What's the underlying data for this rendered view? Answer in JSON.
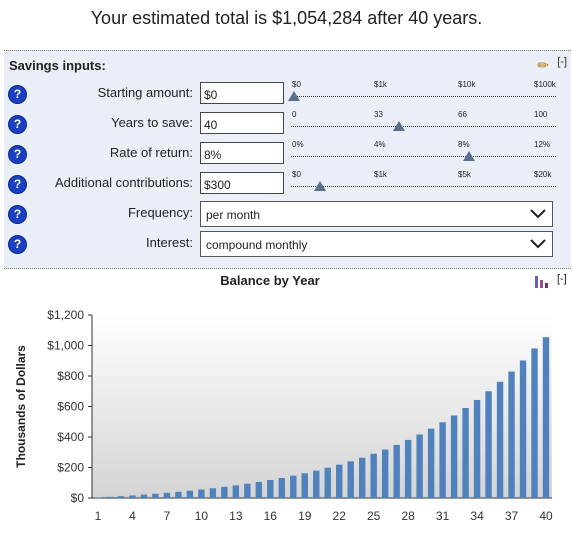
{
  "headline": "Your estimated total is $1,054,284 after 40 years.",
  "panel": {
    "title": "Savings inputs:",
    "collapse": "[-]",
    "help": "?",
    "rows": [
      {
        "label": "Starting amount:",
        "value": "$0",
        "ticks": [
          "$0",
          "$1k",
          "$10k",
          "$100k"
        ],
        "thumb_fraction": 0.0
      },
      {
        "label": "Years to save:",
        "value": "40",
        "ticks": [
          "0",
          "33",
          "66",
          "100"
        ],
        "thumb_fraction": 0.4
      },
      {
        "label": "Rate of return:",
        "value": "8%",
        "ticks": [
          "0%",
          "4%",
          "8%",
          "12%"
        ],
        "thumb_fraction": 0.6667
      },
      {
        "label": "Additional contributions:",
        "value": "$300",
        "ticks": [
          "$0",
          "$1k",
          "$5k",
          "$20k"
        ],
        "thumb_fraction": 0.1
      }
    ],
    "frequency": {
      "label": "Frequency:",
      "value": "per month"
    },
    "interest": {
      "label": "Interest:",
      "value": "compound monthly"
    }
  },
  "chart_icon": "bar-chart-icon",
  "chart_collapse": "[-]",
  "chart_data": {
    "type": "bar",
    "title": "Balance by Year",
    "ylabel": "Thousands of Dollars",
    "xlabel": "",
    "ylim": [
      0,
      1200
    ],
    "y_ticks": [
      "$0",
      "$200",
      "$400",
      "$600",
      "$800",
      "$1,000",
      "$1,200"
    ],
    "x_tick_labels": [
      "1",
      "4",
      "7",
      "10",
      "13",
      "16",
      "19",
      "22",
      "25",
      "28",
      "31",
      "34",
      "37",
      "40"
    ],
    "bar_color": "#4f81bd",
    "categories": [
      1,
      2,
      3,
      4,
      5,
      6,
      7,
      8,
      9,
      10,
      11,
      12,
      13,
      14,
      15,
      16,
      17,
      18,
      19,
      20,
      21,
      22,
      23,
      24,
      25,
      26,
      27,
      28,
      29,
      30,
      31,
      32,
      33,
      34,
      35,
      36,
      37,
      38,
      39,
      40
    ],
    "values": [
      3.7,
      7.8,
      12.2,
      17.0,
      22.2,
      27.9,
      34.0,
      40.6,
      47.8,
      55.6,
      64.0,
      73.2,
      83.0,
      93.7,
      105.3,
      117.9,
      131.5,
      146.3,
      162.3,
      179.5,
      198.3,
      218.5,
      240.5,
      264.3,
      290.0,
      317.9,
      348.1,
      380.8,
      416.3,
      454.7,
      496.3,
      541.3,
      590.1,
      642.9,
      700.1,
      762.1,
      829.2,
      901.9,
      980.6,
      1054.3
    ]
  }
}
